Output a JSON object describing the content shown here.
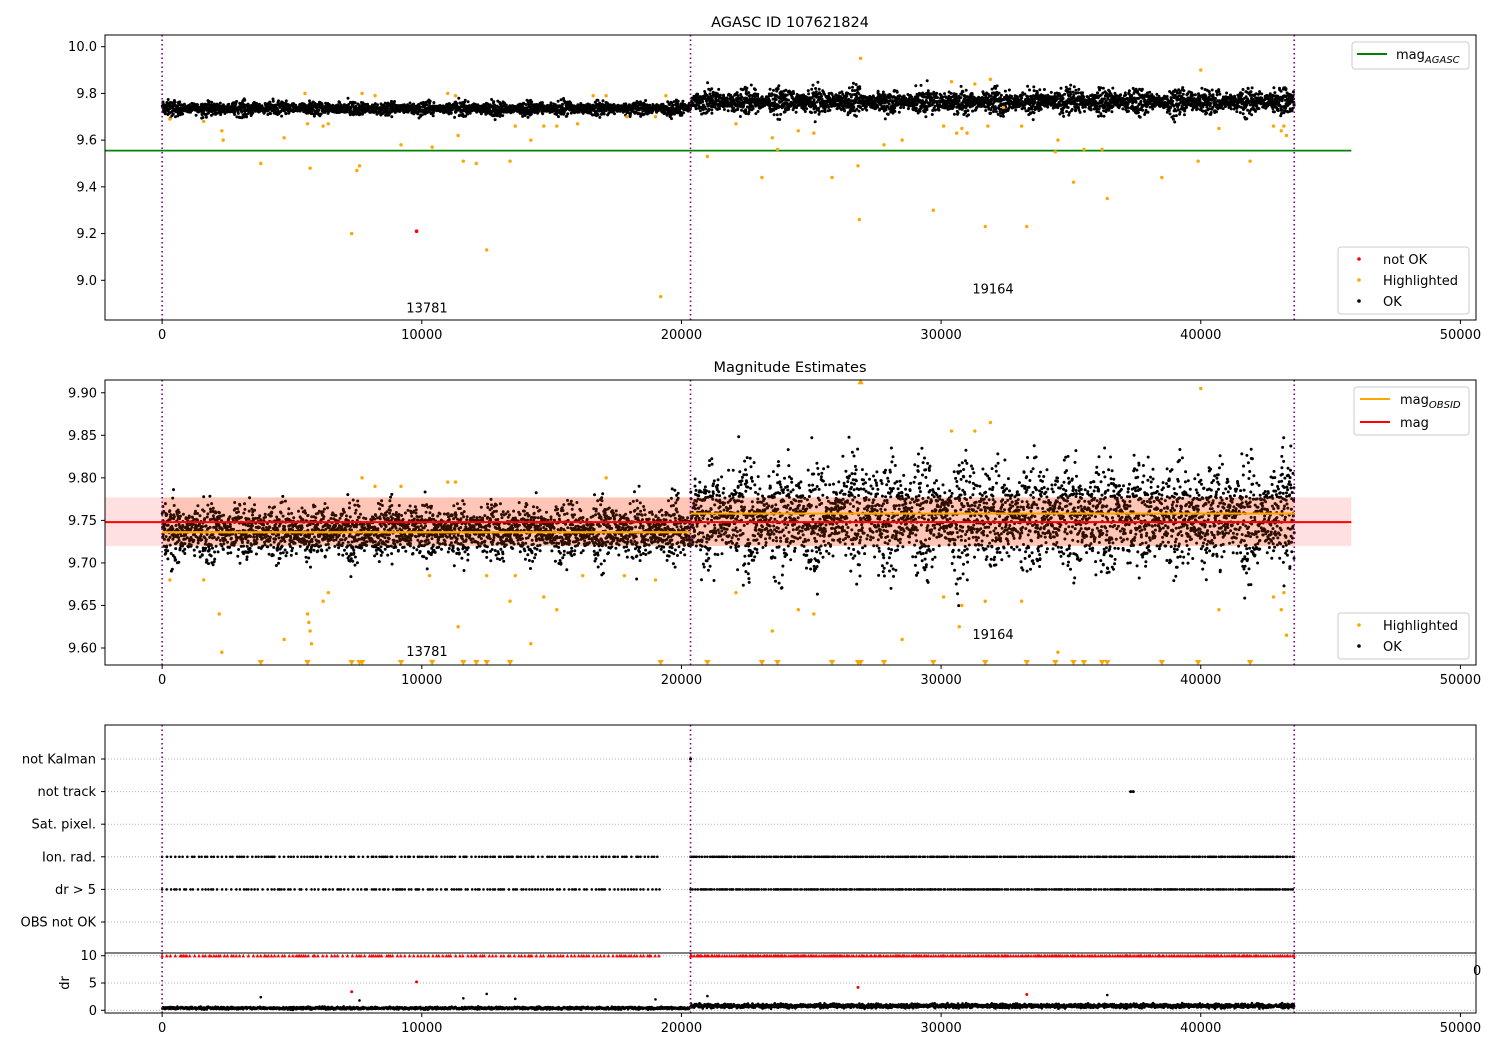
{
  "figure": {
    "title": "AGASC ID 107621824"
  },
  "chart_data": [
    {
      "type": "scatter",
      "title": "AGASC ID 107621824",
      "xlim": [
        -2200,
        50600
      ],
      "ylim": [
        8.83,
        10.05
      ],
      "xticks": [
        0,
        10000,
        20000,
        30000,
        40000,
        50000
      ],
      "yticks": [
        9.0,
        9.2,
        9.4,
        9.6,
        9.8,
        10.0
      ],
      "ytick_labels": [
        "9.0",
        "9.2",
        "9.4",
        "9.6",
        "9.8",
        "10.0"
      ],
      "grid": false,
      "obs_boundaries": [
        0,
        20350,
        43600
      ],
      "obs_labels": [
        {
          "x": 10200,
          "y": 8.88,
          "text": "13781"
        },
        {
          "x": 32000,
          "y": 8.96,
          "text": "19164"
        }
      ],
      "hlines": [
        {
          "name": "mag_AGASC",
          "y": 9.555,
          "x": [
            -2200,
            45800
          ],
          "color": "#008000"
        }
      ],
      "legends": [
        {
          "placement": "top-right",
          "entries": [
            {
              "label": "mag",
              "sub": "AGASC",
              "color": "#008000",
              "kind": "line"
            }
          ]
        },
        {
          "placement": "bottom-right",
          "entries": [
            {
              "label": "not OK",
              "color": "#ff0000",
              "kind": "dot"
            },
            {
              "label": "Highlighted",
              "color": "#ffa500",
              "kind": "dot"
            },
            {
              "label": "OK",
              "color": "#000000",
              "kind": "dot"
            }
          ]
        }
      ],
      "series": [
        {
          "name": "OK",
          "color": "#000000",
          "bands": [
            {
              "x": [
                0,
                20350
              ],
              "center": 9.735,
              "half": 0.04
            },
            {
              "x": [
                20350,
                43600
              ],
              "center": 9.765,
              "half": 0.07
            }
          ]
        },
        {
          "name": "Highlighted",
          "color": "#ffa500",
          "points": [
            [
              300,
              9.69
            ],
            [
              1600,
              9.68
            ],
            [
              2300,
              9.64
            ],
            [
              2350,
              9.6
            ],
            [
              3800,
              9.5
            ],
            [
              4700,
              9.61
            ],
            [
              5500,
              9.8
            ],
            [
              5600,
              9.67
            ],
            [
              5700,
              9.48
            ],
            [
              6200,
              9.66
            ],
            [
              6400,
              9.67
            ],
            [
              7300,
              9.2
            ],
            [
              7500,
              9.47
            ],
            [
              7600,
              9.49
            ],
            [
              7700,
              9.8
            ],
            [
              8200,
              9.79
            ],
            [
              9200,
              9.58
            ],
            [
              10400,
              9.57
            ],
            [
              11000,
              9.8
            ],
            [
              11300,
              9.79
            ],
            [
              11400,
              9.62
            ],
            [
              11600,
              9.51
            ],
            [
              12100,
              9.5
            ],
            [
              12500,
              9.13
            ],
            [
              13400,
              9.51
            ],
            [
              13600,
              9.66
            ],
            [
              14200,
              9.6
            ],
            [
              14700,
              9.66
            ],
            [
              15200,
              9.66
            ],
            [
              16000,
              9.67
            ],
            [
              16600,
              9.79
            ],
            [
              17100,
              9.79
            ],
            [
              17900,
              9.7
            ],
            [
              19000,
              9.7
            ],
            [
              19200,
              8.93
            ],
            [
              19400,
              9.79
            ],
            [
              21000,
              9.53
            ],
            [
              22100,
              9.67
            ],
            [
              23100,
              9.44
            ],
            [
              23500,
              9.61
            ],
            [
              23700,
              9.56
            ],
            [
              24500,
              9.64
            ],
            [
              25100,
              9.63
            ],
            [
              25800,
              9.44
            ],
            [
              26800,
              9.49
            ],
            [
              26850,
              9.26
            ],
            [
              26900,
              9.95
            ],
            [
              27800,
              9.58
            ],
            [
              28500,
              9.6
            ],
            [
              29700,
              9.3
            ],
            [
              30100,
              9.66
            ],
            [
              30400,
              9.85
            ],
            [
              30600,
              9.63
            ],
            [
              30800,
              9.65
            ],
            [
              31000,
              9.63
            ],
            [
              31300,
              9.84
            ],
            [
              31700,
              9.23
            ],
            [
              31800,
              9.66
            ],
            [
              31900,
              9.86
            ],
            [
              32400,
              9.74
            ],
            [
              33100,
              9.66
            ],
            [
              33300,
              9.23
            ],
            [
              34400,
              9.55
            ],
            [
              34500,
              9.6
            ],
            [
              35100,
              9.42
            ],
            [
              35500,
              9.56
            ],
            [
              36200,
              9.56
            ],
            [
              36400,
              9.35
            ],
            [
              38500,
              9.44
            ],
            [
              39900,
              9.51
            ],
            [
              40000,
              9.9
            ],
            [
              40700,
              9.65
            ],
            [
              41900,
              9.51
            ],
            [
              42800,
              9.66
            ],
            [
              43100,
              9.64
            ],
            [
              43200,
              9.66
            ],
            [
              43300,
              9.62
            ]
          ]
        },
        {
          "name": "not OK",
          "color": "#ff0000",
          "points": [
            [
              9800,
              9.21
            ]
          ]
        }
      ]
    },
    {
      "type": "scatter",
      "title": "Magnitude Estimates",
      "xlim": [
        -2200,
        50600
      ],
      "ylim": [
        9.58,
        9.915
      ],
      "xticks": [
        0,
        10000,
        20000,
        30000,
        40000,
        50000
      ],
      "yticks": [
        9.6,
        9.65,
        9.7,
        9.75,
        9.8,
        9.85,
        9.9
      ],
      "ytick_labels": [
        "9.60",
        "9.65",
        "9.70",
        "9.75",
        "9.80",
        "9.85",
        "9.90"
      ],
      "grid": false,
      "obs_boundaries": [
        0,
        20350,
        43600
      ],
      "obs_labels": [
        {
          "x": 10200,
          "y": 9.595,
          "text": "13781"
        },
        {
          "x": 32000,
          "y": 9.615,
          "text": "19164"
        }
      ],
      "mag": {
        "value": 9.748,
        "band": [
          9.72,
          9.777
        ],
        "x": [
          -2200,
          45800
        ],
        "color": "#ff0000"
      },
      "mag_obsid": [
        {
          "x": [
            0,
            20350
          ],
          "value": 9.736
        },
        {
          "x": [
            20350,
            43600
          ],
          "value": 9.758
        }
      ],
      "legends": [
        {
          "placement": "top-right",
          "entries": [
            {
              "label": "mag",
              "sub": "OBSID",
              "color": "#ffa500",
              "kind": "line"
            },
            {
              "label": "mag",
              "color": "#ff0000",
              "kind": "line"
            }
          ]
        },
        {
          "placement": "bottom-right",
          "entries": [
            {
              "label": "Highlighted",
              "color": "#ffa500",
              "kind": "dot"
            },
            {
              "label": "OK",
              "color": "#000000",
              "kind": "dot"
            }
          ]
        }
      ],
      "series": [
        {
          "name": "OK",
          "color": "#000000",
          "bands": [
            {
              "x": [
                0,
                20350
              ],
              "center": 9.737,
              "half": 0.045
            },
            {
              "x": [
                20350,
                43600
              ],
              "center": 9.755,
              "half": 0.085
            }
          ]
        },
        {
          "name": "Highlighted",
          "color": "#ffa500",
          "points": [
            [
              300,
              9.68
            ],
            [
              1600,
              9.68
            ],
            [
              2200,
              9.64
            ],
            [
              2300,
              9.595
            ],
            [
              4700,
              9.61
            ],
            [
              5600,
              9.64
            ],
            [
              5650,
              9.63
            ],
            [
              5700,
              9.62
            ],
            [
              5750,
              9.605
            ],
            [
              6200,
              9.655
            ],
            [
              6400,
              9.665
            ],
            [
              7700,
              9.8
            ],
            [
              8200,
              9.79
            ],
            [
              9200,
              9.79
            ],
            [
              10300,
              9.685
            ],
            [
              11000,
              9.795
            ],
            [
              11300,
              9.795
            ],
            [
              11400,
              9.625
            ],
            [
              12500,
              9.685
            ],
            [
              13400,
              9.655
            ],
            [
              13600,
              9.685
            ],
            [
              14200,
              9.605
            ],
            [
              14700,
              9.66
            ],
            [
              15200,
              9.645
            ],
            [
              16200,
              9.685
            ],
            [
              17100,
              9.8
            ],
            [
              17800,
              9.685
            ],
            [
              19000,
              9.68
            ],
            [
              22100,
              9.665
            ],
            [
              23500,
              9.62
            ],
            [
              24500,
              9.645
            ],
            [
              25100,
              9.64
            ],
            [
              28500,
              9.61
            ],
            [
              30100,
              9.66
            ],
            [
              30400,
              9.855
            ],
            [
              30700,
              9.625
            ],
            [
              30800,
              9.65
            ],
            [
              31300,
              9.855
            ],
            [
              31700,
              9.655
            ],
            [
              31900,
              9.865
            ],
            [
              33100,
              9.655
            ],
            [
              34500,
              9.595
            ],
            [
              40000,
              9.905
            ],
            [
              40700,
              9.645
            ],
            [
              42800,
              9.66
            ],
            [
              43100,
              9.645
            ],
            [
              43200,
              9.665
            ],
            [
              43300,
              9.615
            ]
          ]
        },
        {
          "name": "Highlighted-below",
          "color": "#ffa500",
          "marker": "triangle-down",
          "points": [
            [
              3800,
              9.583
            ],
            [
              5600,
              9.583
            ],
            [
              7300,
              9.583
            ],
            [
              7600,
              9.583
            ],
            [
              7700,
              9.583
            ],
            [
              9200,
              9.583
            ],
            [
              10400,
              9.583
            ],
            [
              11600,
              9.583
            ],
            [
              12100,
              9.583
            ],
            [
              12500,
              9.583
            ],
            [
              13400,
              9.583
            ],
            [
              19200,
              9.583
            ],
            [
              21000,
              9.583
            ],
            [
              23100,
              9.583
            ],
            [
              23700,
              9.583
            ],
            [
              25800,
              9.583
            ],
            [
              26800,
              9.583
            ],
            [
              26900,
              9.583
            ],
            [
              27800,
              9.583
            ],
            [
              29700,
              9.583
            ],
            [
              31700,
              9.583
            ],
            [
              33300,
              9.583
            ],
            [
              34400,
              9.583
            ],
            [
              35100,
              9.583
            ],
            [
              35500,
              9.583
            ],
            [
              36200,
              9.583
            ],
            [
              36400,
              9.583
            ],
            [
              38500,
              9.583
            ],
            [
              39900,
              9.583
            ],
            [
              41900,
              9.583
            ]
          ]
        },
        {
          "name": "Highlighted-above",
          "color": "#ffa500",
          "marker": "triangle-up",
          "points": [
            [
              26900,
              9.913
            ]
          ]
        }
      ]
    },
    {
      "type": "scatter",
      "xlim": [
        -2200,
        50600
      ],
      "categories": [
        "not Kalman",
        "not track",
        "Sat. pixel.",
        "Ion. rad.",
        "dr > 5",
        "OBS not OK"
      ],
      "grid": "horizontal-dotted",
      "obs_boundaries": [
        0,
        20350,
        43600
      ],
      "series": [
        {
          "name": "Ion. rad.",
          "color": "#000000",
          "x_ranges": [
            [
              0,
              19200,
              90
            ],
            [
              20350,
              43600,
              50
            ]
          ]
        },
        {
          "name": "dr > 5",
          "color": "#000000",
          "x_ranges": [
            [
              0,
              19200,
              90
            ],
            [
              20350,
              43600,
              50
            ]
          ]
        },
        {
          "name": "not track",
          "color": "#000000",
          "points": [
            37300,
            37400
          ]
        },
        {
          "name": "not Kalman",
          "color": "#000000",
          "points": [
            20350
          ]
        }
      ]
    },
    {
      "type": "scatter",
      "xlim": [
        -2200,
        50600
      ],
      "ylim": [
        -0.5,
        10.5
      ],
      "ylabel": "dr",
      "xticks": [
        0,
        10000,
        20000,
        30000,
        40000,
        50000
      ],
      "yticks": [
        0,
        5,
        10
      ],
      "ytick_labels": [
        "0",
        "5",
        "10"
      ],
      "grid": "horizontal-dotted",
      "obs_boundaries": [
        0,
        20350,
        43600
      ],
      "series": [
        {
          "name": "dr",
          "color": "#000000",
          "bands": [
            {
              "x": [
                0,
                20350
              ],
              "center": 0.4,
              "half": 0.35
            },
            {
              "x": [
                20350,
                43600
              ],
              "center": 0.8,
              "half": 0.6
            }
          ]
        },
        {
          "name": "dr clipped",
          "color": "#ff0000",
          "marker": "triangle-up",
          "x_ranges": [
            [
              0,
              19200,
              90
            ],
            [
              20350,
              43600,
              50
            ]
          ],
          "y": 10
        },
        {
          "name": "dr outliers",
          "color": "#ff0000",
          "points": [
            [
              7300,
              3.4
            ],
            [
              9800,
              5.2
            ],
            [
              26800,
              4.2
            ],
            [
              33300,
              2.9
            ]
          ]
        },
        {
          "name": "dr outliers ok",
          "color": "#000000",
          "points": [
            [
              3800,
              2.4
            ],
            [
              7600,
              1.8
            ],
            [
              11600,
              2.2
            ],
            [
              12500,
              3.0
            ],
            [
              13600,
              2.1
            ],
            [
              19000,
              2.0
            ],
            [
              21000,
              2.6
            ],
            [
              36400,
              2.8
            ]
          ]
        }
      ]
    }
  ]
}
